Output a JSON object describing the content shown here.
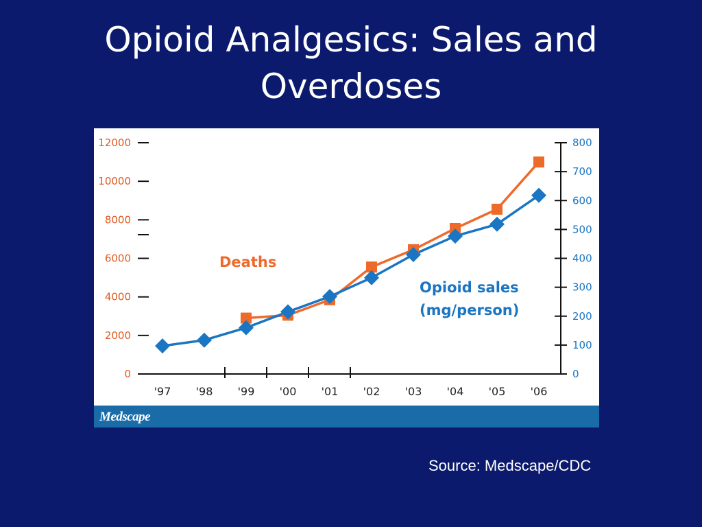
{
  "slide": {
    "title_line1": "Opioid Analgesics: Sales and",
    "title_line2": "Overdoses",
    "source": "Source: Medscape/CDC",
    "brand": "Medscape"
  },
  "colors": {
    "background": "#0b1a6c",
    "deaths": "#ee6a2b",
    "sales": "#1a75c2",
    "left_axis_text": "#e05a20",
    "right_axis_text": "#1a75c2",
    "brand_bar": "#1a6ca8"
  },
  "chart_data": {
    "type": "line",
    "categories": [
      "'97",
      "'98",
      "'99",
      "'00",
      "'01",
      "'02",
      "'03",
      "'04",
      "'05",
      "'06"
    ],
    "y_left": {
      "ticks": [
        "0",
        "2000",
        "4000",
        "6000",
        "8000",
        "10000",
        "12000"
      ],
      "ylim": [
        0,
        12000
      ]
    },
    "y_right": {
      "ticks": [
        "0",
        "100",
        "200",
        "300",
        "400",
        "500",
        "600",
        "700",
        "800"
      ],
      "ylim": [
        0,
        800
      ]
    },
    "series": [
      {
        "name": "Deaths",
        "axis": "left",
        "marker": "square",
        "values": [
          null,
          null,
          2900,
          3050,
          3850,
          5550,
          6450,
          7550,
          8550,
          11000
        ]
      },
      {
        "name": "Opioid sales (mg/person)",
        "name_line1": "Opioid sales",
        "name_line2": "(mg/person)",
        "axis": "right",
        "marker": "diamond",
        "values": [
          97,
          117,
          160,
          215,
          268,
          333,
          413,
          477,
          518,
          618
        ]
      }
    ]
  }
}
